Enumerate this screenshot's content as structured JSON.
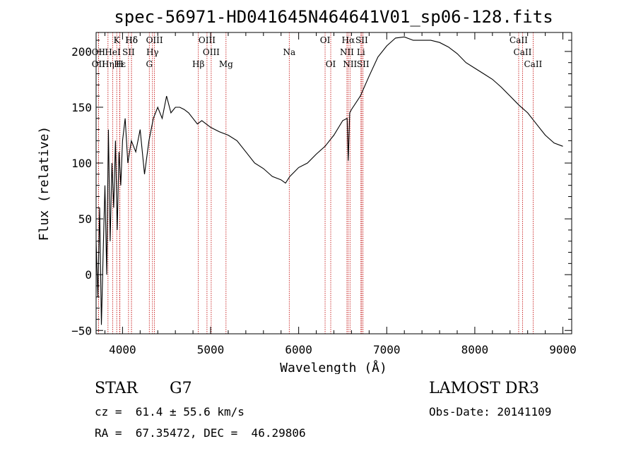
{
  "chart_data": {
    "type": "line",
    "title": "spec-56971-HD041645N464641V01_sp06-128.fits",
    "xlabel": "Wavelength (Å)",
    "ylabel": "Flux (relative)",
    "xlim": [
      3700,
      9100
    ],
    "ylim": [
      -53,
      217
    ],
    "xticks": [
      4000,
      5000,
      6000,
      7000,
      8000,
      9000
    ],
    "yticks": [
      -50,
      0,
      50,
      100,
      150,
      200
    ],
    "grid": false,
    "series": [
      {
        "name": "flux",
        "color": "#000000",
        "x": [
          3700,
          3720,
          3740,
          3760,
          3780,
          3800,
          3820,
          3840,
          3860,
          3880,
          3900,
          3920,
          3940,
          3960,
          3980,
          4000,
          4030,
          4060,
          4100,
          4150,
          4200,
          4250,
          4300,
          4350,
          4400,
          4450,
          4500,
          4550,
          4600,
          4650,
          4700,
          4750,
          4800,
          4850,
          4900,
          4950,
          5000,
          5050,
          5100,
          5200,
          5300,
          5400,
          5500,
          5600,
          5700,
          5800,
          5850,
          5900,
          5950,
          6000,
          6100,
          6200,
          6300,
          6400,
          6500,
          6550,
          6563,
          6580,
          6600,
          6700,
          6800,
          6900,
          7000,
          7100,
          7200,
          7300,
          7400,
          7500,
          7600,
          7700,
          7800,
          7900,
          8000,
          8100,
          8200,
          8300,
          8400,
          8500,
          8600,
          8700,
          8800,
          8900,
          9000
        ],
        "y": [
          30,
          -20,
          60,
          -45,
          20,
          80,
          0,
          130,
          30,
          100,
          60,
          120,
          40,
          110,
          80,
          120,
          140,
          100,
          120,
          110,
          130,
          90,
          120,
          140,
          150,
          140,
          160,
          145,
          150,
          150,
          148,
          145,
          140,
          135,
          138,
          135,
          132,
          130,
          128,
          125,
          120,
          110,
          100,
          95,
          88,
          85,
          82,
          88,
          92,
          96,
          100,
          108,
          115,
          125,
          138,
          140,
          102,
          145,
          148,
          160,
          178,
          195,
          205,
          212,
          213,
          210,
          210,
          210,
          208,
          204,
          198,
          190,
          185,
          180,
          175,
          168,
          160,
          152,
          145,
          135,
          125,
          118,
          115
        ]
      }
    ],
    "lines": [
      {
        "name": "Hδ",
        "wl": 4102,
        "row": 1
      },
      {
        "name": "K",
        "wl": 3934,
        "row": 1
      },
      {
        "name": "Hδ",
        "wl": 4102,
        "row": 1
      },
      {
        "name": "OIII",
        "wl": 4363,
        "row": 1
      },
      {
        "name": "OIII",
        "wl": 4959,
        "row": 1
      },
      {
        "name": "OI",
        "wl": 6300,
        "row": 1
      },
      {
        "name": "Hα",
        "wl": 6563,
        "row": 1
      },
      {
        "name": "SII",
        "wl": 6716,
        "row": 1
      },
      {
        "name": "CaII",
        "wl": 8498,
        "row": 1
      },
      {
        "name": "OII",
        "wl": 3727,
        "row": 2
      },
      {
        "name": "HeI",
        "wl": 3889,
        "row": 2
      },
      {
        "name": "SII",
        "wl": 4068,
        "row": 2
      },
      {
        "name": "Hγ",
        "wl": 4340,
        "row": 2
      },
      {
        "name": "OIII",
        "wl": 5007,
        "row": 2
      },
      {
        "name": "Na",
        "wl": 5893,
        "row": 2
      },
      {
        "name": "NII",
        "wl": 6548,
        "row": 2
      },
      {
        "name": "Li",
        "wl": 6707,
        "row": 2
      },
      {
        "name": "CaII",
        "wl": 8542,
        "row": 2
      },
      {
        "name": "OII",
        "wl": 3727,
        "row": 3
      },
      {
        "name": "Hε",
        "wl": 3970,
        "row": 3
      },
      {
        "name": "Hη",
        "wl": 3835,
        "row": 3
      },
      {
        "name": "H",
        "wl": 3968,
        "row": 3
      },
      {
        "name": "G",
        "wl": 4304,
        "row": 3
      },
      {
        "name": "Hβ",
        "wl": 4861,
        "row": 3
      },
      {
        "name": "Mg",
        "wl": 5175,
        "row": 3
      },
      {
        "name": "OI",
        "wl": 6364,
        "row": 3
      },
      {
        "name": "NII",
        "wl": 6583,
        "row": 3
      },
      {
        "name": "SII",
        "wl": 6731,
        "row": 3
      },
      {
        "name": "CaII",
        "wl": 8662,
        "row": 3
      }
    ]
  },
  "info": {
    "object_class": "STAR",
    "subclass": "G7",
    "survey": "LAMOST DR3",
    "redshift": "cz =  61.4 ± 55.6 km/s",
    "obs_date": "Obs-Date: 20141109",
    "coords": "RA =  67.35472, DEC =  46.29806"
  }
}
